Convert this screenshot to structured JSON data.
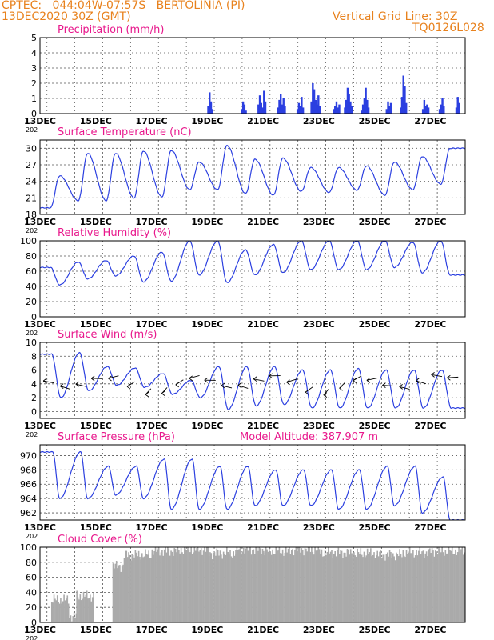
{
  "header": {
    "line1": "CPTEC:   044:04W-07:57S   BERTOLINIA (PI)",
    "line2": "13DEC2020 30Z (GMT)",
    "right1": "Vertical Grid Line: 30Z",
    "right2": "TQ0126L028"
  },
  "x_axis": {
    "ticks": [
      "13DEC",
      "15DEC",
      "17DEC",
      "19DEC",
      "21DEC",
      "23DEC",
      "25DEC",
      "27DEC"
    ],
    "year_label": "202"
  },
  "colors": {
    "header": "#e8821e",
    "title": "#e8188c",
    "line": "#2b3fe0",
    "bar": "#2b3fe0",
    "cloud": "#aaaaaa"
  },
  "chart_data": [
    {
      "type": "bar",
      "title": "Precipitation (mm/h)",
      "ylim": [
        0,
        5
      ],
      "yticks": [
        0,
        1,
        2,
        3,
        4,
        5
      ],
      "values_by_day": [
        {
          "day": 19.0,
          "values": [
            0.5,
            1.4,
            0.8,
            0.3
          ]
        },
        {
          "day": 20.2,
          "values": [
            0.3,
            0.8,
            0.6,
            0.2
          ]
        },
        {
          "day": 20.8,
          "values": [
            0.6,
            1.2,
            0.7,
            0.4,
            1.5,
            0.8
          ]
        },
        {
          "day": 21.5,
          "values": [
            0.4,
            0.9,
            1.3,
            0.6,
            1.0,
            0.5
          ]
        },
        {
          "day": 22.2,
          "values": [
            0.3,
            0.7,
            0.5,
            1.1,
            0.4
          ]
        },
        {
          "day": 22.7,
          "values": [
            0.8,
            2.0,
            1.6,
            0.9,
            0.6,
            1.2,
            0.5
          ]
        },
        {
          "day": 23.5,
          "values": [
            0.3,
            0.5,
            0.8,
            0.4,
            0.6
          ]
        },
        {
          "day": 23.9,
          "values": [
            0.4,
            0.9,
            1.7,
            1.3,
            0.8,
            0.5
          ]
        },
        {
          "day": 24.5,
          "values": [
            0.2,
            0.6,
            1.0,
            1.7,
            0.9,
            0.4
          ]
        },
        {
          "day": 25.4,
          "values": [
            0.3,
            0.8,
            0.5,
            0.7
          ]
        },
        {
          "day": 25.9,
          "values": [
            0.4,
            1.1,
            2.5,
            1.8,
            0.7
          ]
        },
        {
          "day": 26.7,
          "values": [
            0.3,
            0.9,
            0.5,
            0.6,
            0.4
          ]
        },
        {
          "day": 27.3,
          "values": [
            0.3,
            0.6,
            1.0,
            0.5
          ]
        },
        {
          "day": 27.9,
          "values": [
            0.4,
            1.1,
            0.7
          ]
        }
      ]
    },
    {
      "type": "line",
      "title": "Surface Temperature (nC)",
      "ylim": [
        18,
        31.5
      ],
      "yticks": [
        18,
        21,
        24,
        27,
        30
      ],
      "daily_max": [
        25,
        29.1,
        29.1,
        29.5,
        29.6,
        27.5,
        30.5,
        28,
        28.2,
        26.5,
        26.5,
        26.8,
        27.5,
        28.5,
        30
      ],
      "daily_min": [
        19.2,
        20.5,
        20.5,
        21,
        21.2,
        22.5,
        22.5,
        21.8,
        21.5,
        22.2,
        22,
        22.4,
        21.5,
        22.5,
        23.5
      ],
      "min_hour": 9,
      "max_hour": 17
    },
    {
      "type": "line",
      "title": "Relative Humidity (%)",
      "ylim": [
        0,
        100
      ],
      "yticks": [
        0,
        20,
        40,
        60,
        80,
        100
      ],
      "daily_max": [
        65,
        72,
        74,
        80,
        85,
        100,
        100,
        88,
        95,
        100,
        100,
        100,
        100,
        98,
        100
      ],
      "daily_min": [
        42,
        50,
        54,
        46,
        47,
        55,
        45,
        55,
        58,
        62,
        62,
        62,
        65,
        58,
        55
      ],
      "min_hour": 17,
      "max_hour": 9
    },
    {
      "type": "line",
      "title": "Surface Wind (m/s)",
      "ylim": [
        -1,
        10
      ],
      "yticks": [
        0,
        2,
        4,
        6,
        8,
        10
      ],
      "daily_max": [
        8.3,
        8.5,
        6.5,
        6.3,
        5.5,
        4.5,
        6.5,
        6.5,
        6.5,
        6,
        6,
        6.2,
        6,
        6,
        6
      ],
      "daily_min": [
        2,
        3,
        3.8,
        3.5,
        2.5,
        2,
        0.3,
        0.8,
        1,
        0.5,
        0.5,
        0.5,
        0.5,
        0.5,
        0.5
      ],
      "min_hour": 18,
      "max_hour": 10
    },
    {
      "type": "line",
      "title": "Surface Pressure (hPa)",
      "annotation": "Model Altitude: 387.907 m",
      "ylim": [
        961,
        971.5
      ],
      "yticks": [
        962,
        964,
        966,
        968,
        970
      ],
      "daily_max": [
        970.5,
        970.5,
        968.5,
        968.5,
        969.5,
        969.5,
        968.5,
        968.5,
        968,
        968,
        968,
        968,
        968.5,
        968.5,
        967
      ],
      "daily_min": [
        964,
        964,
        964.5,
        964,
        962.5,
        962.5,
        962.5,
        963,
        963,
        963,
        962.5,
        962.5,
        963,
        962,
        961
      ],
      "min_hour": 17,
      "max_hour": 11
    },
    {
      "type": "area",
      "title": "Cloud Cover (%)",
      "ylim": [
        0,
        100
      ],
      "yticks": [
        0,
        20,
        40,
        60,
        80,
        100
      ],
      "segments": [
        {
          "from": 13.0,
          "to": 13.4,
          "level": 0
        },
        {
          "from": 13.4,
          "to": 14.0,
          "level": 30
        },
        {
          "from": 14.0,
          "to": 14.3,
          "level": 8
        },
        {
          "from": 14.3,
          "to": 14.9,
          "level": 35
        },
        {
          "from": 14.9,
          "to": 15.6,
          "level": 0
        },
        {
          "from": 15.6,
          "to": 16.0,
          "level": 75
        },
        {
          "from": 16.0,
          "to": 17.0,
          "level": 90
        },
        {
          "from": 17.0,
          "to": 18.0,
          "level": 95
        },
        {
          "from": 18.0,
          "to": 19.0,
          "level": 97
        },
        {
          "from": 19.0,
          "to": 20.0,
          "level": 92
        },
        {
          "from": 20.0,
          "to": 21.0,
          "level": 97
        },
        {
          "from": 21.0,
          "to": 22.0,
          "level": 95
        },
        {
          "from": 22.0,
          "to": 23.0,
          "level": 97
        },
        {
          "from": 23.0,
          "to": 24.0,
          "level": 93
        },
        {
          "from": 24.0,
          "to": 25.0,
          "level": 92
        },
        {
          "from": 25.0,
          "to": 26.0,
          "level": 90
        },
        {
          "from": 26.0,
          "to": 27.0,
          "level": 93
        },
        {
          "from": 27.0,
          "to": 28.4,
          "level": 95
        }
      ]
    }
  ]
}
